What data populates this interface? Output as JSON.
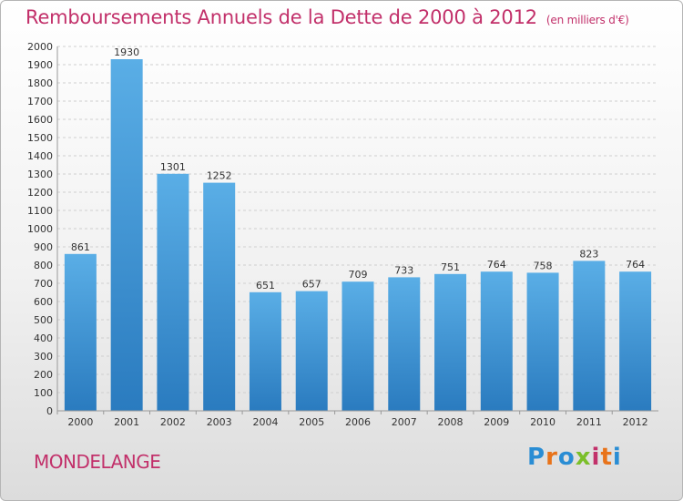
{
  "chart_data": {
    "type": "bar",
    "title": "Remboursements Annuels de la Dette de 2000 à 2012",
    "subtitle": "(en milliers d'€)",
    "categories": [
      "2000",
      "2001",
      "2002",
      "2003",
      "2004",
      "2005",
      "2006",
      "2007",
      "2008",
      "2009",
      "2010",
      "2011",
      "2012"
    ],
    "values": [
      861,
      1930,
      1301,
      1252,
      651,
      657,
      709,
      733,
      751,
      764,
      758,
      823,
      764
    ],
    "ylim": [
      0,
      2000
    ],
    "ytick_step": 100,
    "grid": true,
    "bar_color_top": "#5aaee6",
    "bar_color_bottom": "#2a7bbf"
  },
  "footer": {
    "location": "MONDELANGE",
    "brand": "Proxiti",
    "brand_colors": [
      "#2a8dd4",
      "#e8731a",
      "#2a8dd4",
      "#7bbf2a",
      "#c2306a",
      "#e8731a",
      "#2a8dd4"
    ]
  }
}
